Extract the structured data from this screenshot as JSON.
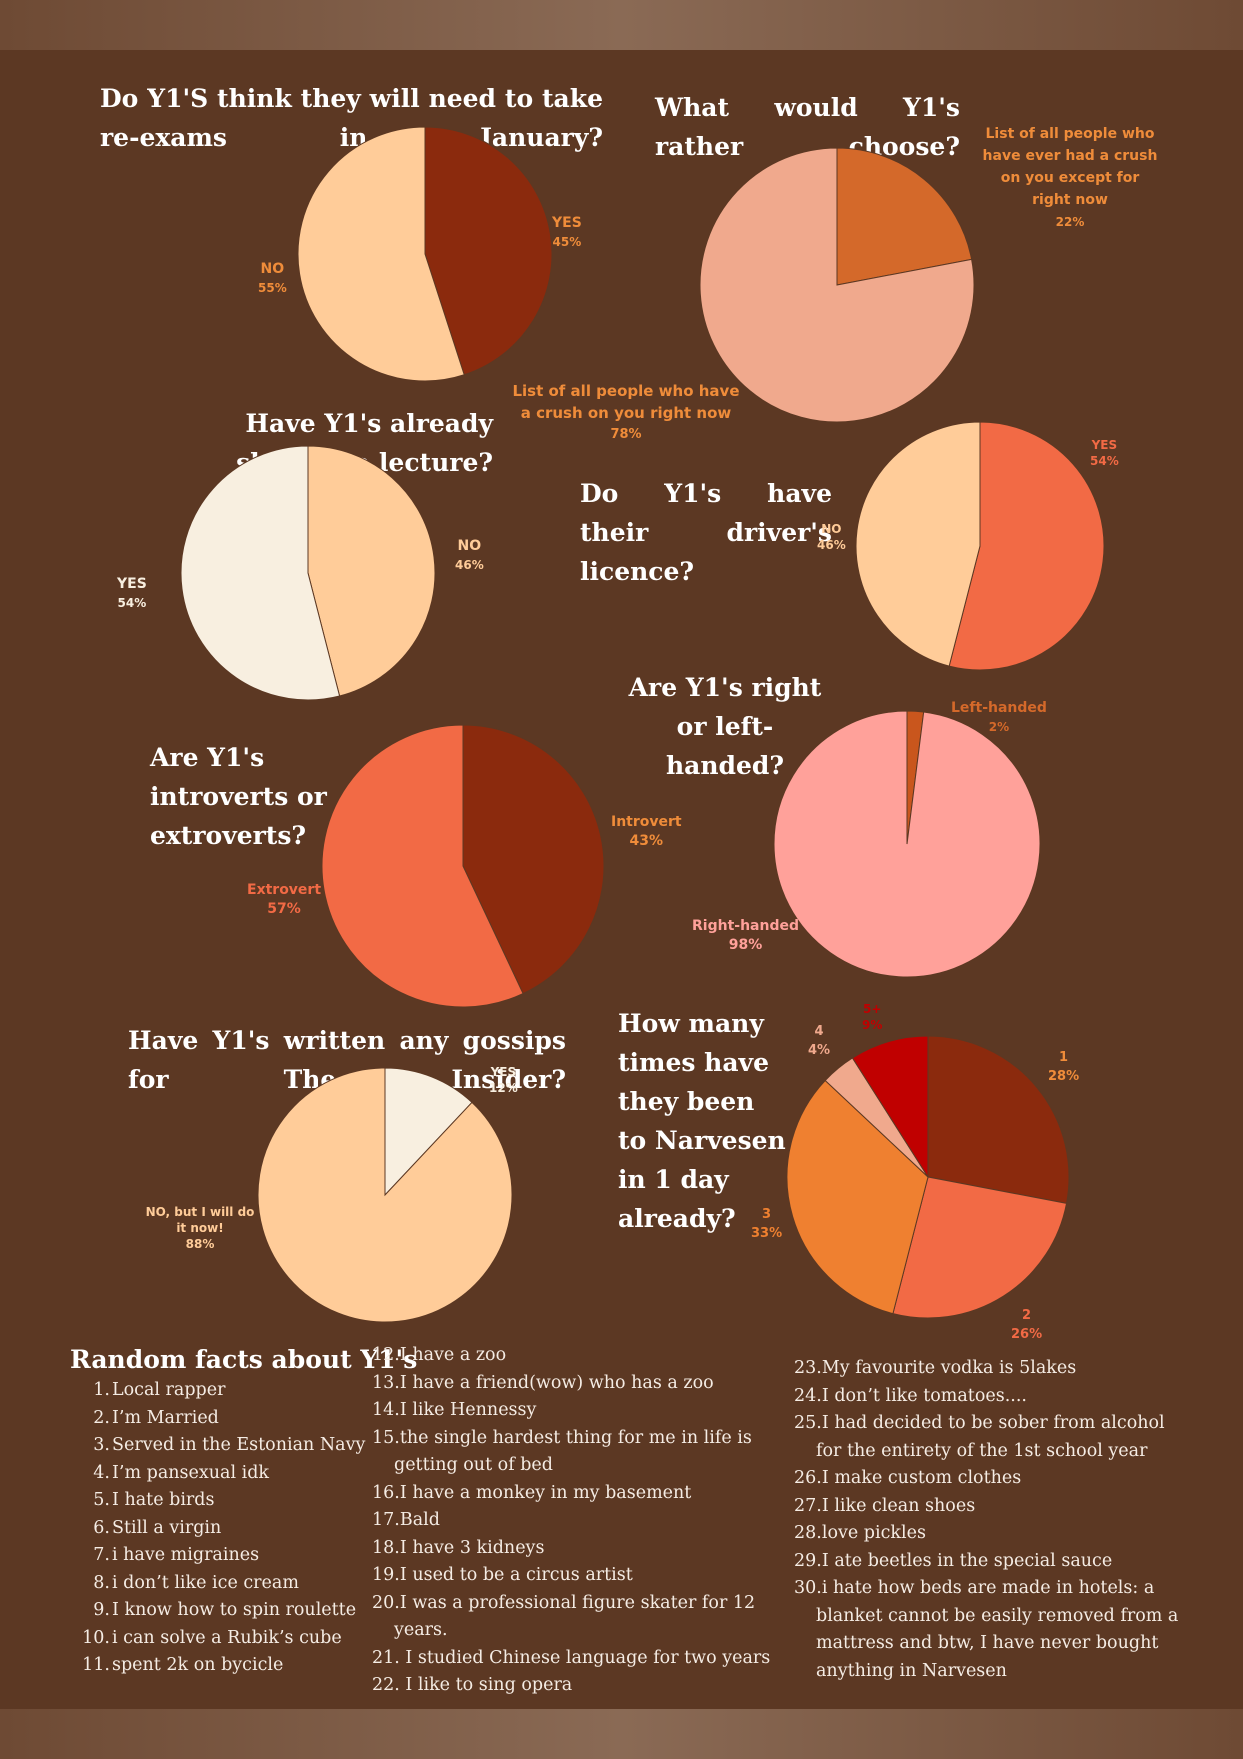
{
  "colors": {
    "background": "#5c3823",
    "band": "#86664f",
    "title": "#ffffff",
    "fact_text": "#f5ece4"
  },
  "chart_data": [
    {
      "type": "pie",
      "title": "Do Y1'S think they will need to take re-exams in January?",
      "startAngle": 0,
      "slices": [
        {
          "label": "YES",
          "value": 45,
          "percent": "45%",
          "color": "#8b2a0d",
          "labelColor": "#ef8c3a"
        },
        {
          "label": "NO",
          "value": 55,
          "percent": "55%",
          "color": "#ffcc99",
          "labelColor": "#ef8c3a"
        }
      ]
    },
    {
      "type": "pie",
      "title": "What would Y1's rather choose?",
      "startAngle": 0,
      "slices": [
        {
          "label": "List of all people who have ever had a crush on you except for right now",
          "value": 22,
          "percent": "22%",
          "color": "#d4692a",
          "labelColor": "#ef8c3a"
        },
        {
          "label": "List of all people who have a crush on you right now",
          "value": 78,
          "percent": "78%",
          "color": "#f0a98d",
          "labelColor": "#ef8c3a"
        }
      ]
    },
    {
      "type": "pie",
      "title": "Have Y1's already skipped a lecture?",
      "startAngle": 0,
      "slices": [
        {
          "label": "NO",
          "value": 46,
          "percent": "46%",
          "color": "#ffcc99",
          "labelColor": "#ffcc99"
        },
        {
          "label": "YES",
          "value": 54,
          "percent": "54%",
          "color": "#f8efe0",
          "labelColor": "#f8efe0"
        }
      ]
    },
    {
      "type": "pie",
      "title": "Do Y1's have their driver's licence?",
      "startAngle": 0,
      "slices": [
        {
          "label": "YES",
          "value": 54,
          "percent": "54%",
          "color": "#f26a45",
          "labelColor": "#f26a45"
        },
        {
          "label": "NO",
          "value": 46,
          "percent": "46%",
          "color": "#ffcc99",
          "labelColor": "#ffcc99"
        }
      ]
    },
    {
      "type": "pie",
      "title": "Are Y1's introverts or extroverts?",
      "startAngle": 0,
      "slices": [
        {
          "label": "Introvert",
          "value": 43,
          "percent": "43%",
          "color": "#8b2a0d",
          "labelColor": "#ef8c3a"
        },
        {
          "label": "Extrovert",
          "value": 57,
          "percent": "57%",
          "color": "#f26a45",
          "labelColor": "#f26a45"
        }
      ]
    },
    {
      "type": "pie",
      "title": "Are Y1's right or left-handed?",
      "startAngle": 0,
      "slices": [
        {
          "label": "Left-handed",
          "value": 2,
          "percent": "2%",
          "color": "#c9561d",
          "labelColor": "#d4692a"
        },
        {
          "label": "Right-handed",
          "value": 98,
          "percent": "98%",
          "color": "#ffa19a",
          "labelColor": "#ffa19a"
        }
      ]
    },
    {
      "type": "pie",
      "title": "Have Y1's written any gossips for The Insider?",
      "startAngle": 0,
      "slices": [
        {
          "label": "YES",
          "value": 12,
          "percent": "12%",
          "color": "#f8efe0",
          "labelColor": "#f8efe0"
        },
        {
          "label": "NO, but I will do it now!",
          "value": 88,
          "percent": "88%",
          "color": "#ffcc99",
          "labelColor": "#ffcc99"
        }
      ]
    },
    {
      "type": "pie",
      "title": "How many times have they been to Narvesen in 1 day already?",
      "startAngle": 0,
      "slices": [
        {
          "label": "1",
          "value": 28,
          "percent": "28%",
          "color": "#8b2a0d",
          "labelColor": "#ef8c3a"
        },
        {
          "label": "2",
          "value": 26,
          "percent": "26%",
          "color": "#f26a45",
          "labelColor": "#f26a45"
        },
        {
          "label": "3",
          "value": 33,
          "percent": "33%",
          "color": "#ef8030",
          "labelColor": "#ef8030"
        },
        {
          "label": "4",
          "value": 4,
          "percent": "4%",
          "color": "#f0a98d",
          "labelColor": "#f0a98d"
        },
        {
          "label": "5+",
          "value": 9,
          "percent": "9%",
          "color": "#c00000",
          "labelColor": "#c00000"
        }
      ]
    }
  ],
  "facts": {
    "title": "Random facts about Y1's",
    "col1": [
      {
        "num": "1.",
        "text": "Local rapper"
      },
      {
        "num": "2.",
        "text": "I’m Married"
      },
      {
        "num": "3.",
        "text": "Served in the Estonian Navy"
      },
      {
        "num": "4.",
        "text": "I’m pansexual idk"
      },
      {
        "num": "5.",
        "text": "I hate birds"
      },
      {
        "num": "6.",
        "text": "Still a virgin"
      },
      {
        "num": "7.",
        "text": "i have migraines"
      },
      {
        "num": "8.",
        "text": "i don’t like ice cream"
      },
      {
        "num": "9.",
        "text": "I know how to spin roulette"
      },
      {
        "num": "10.",
        "text": "i can solve a Rubik’s cube"
      },
      {
        "num": "11.",
        "text": "spent 2k on bycicle"
      }
    ],
    "col2": [
      {
        "num": "12.",
        "text": "I have a zoo"
      },
      {
        "num": "13.",
        "text": "I have a friend(wow) who has a zoo"
      },
      {
        "num": "14.",
        "text": "I like Hennessy"
      },
      {
        "num": "15.",
        "text": "the single hardest thing for me in life is getting out of bed"
      },
      {
        "num": "16.",
        "text": "I have a monkey in my basement"
      },
      {
        "num": "17.",
        "text": "Bald"
      },
      {
        "num": "18.",
        "text": "I have 3 kidneys"
      },
      {
        "num": "19.",
        "text": "I used to be a circus artist"
      },
      {
        "num": "20.",
        "text": "I was a professional figure skater for 12 years."
      },
      {
        "num": "21. ",
        "text": "I studied Chinese language for two years"
      },
      {
        "num": "22. ",
        "text": "I like to sing opera"
      }
    ],
    "col3": [
      {
        "num": "23.",
        "text": "My favourite vodka is 5lakes"
      },
      {
        "num": "24.",
        "text": "I don’t like tomatoes...."
      },
      {
        "num": "25.",
        "text": "I had decided to be sober from alcohol for the entirety of the 1st school year"
      },
      {
        "num": "26.",
        "text": "I make custom clothes"
      },
      {
        "num": "27.",
        "text": "I like clean shoes"
      },
      {
        "num": "28.",
        "text": "love pickles"
      },
      {
        "num": "29.",
        "text": "I ate beetles in the special sauce"
      },
      {
        "num": "30.",
        "text": "i hate how beds are made in hotels: a blanket cannot be easily removed from a mattress and btw, I have never bought anything in Narvesen"
      }
    ]
  }
}
